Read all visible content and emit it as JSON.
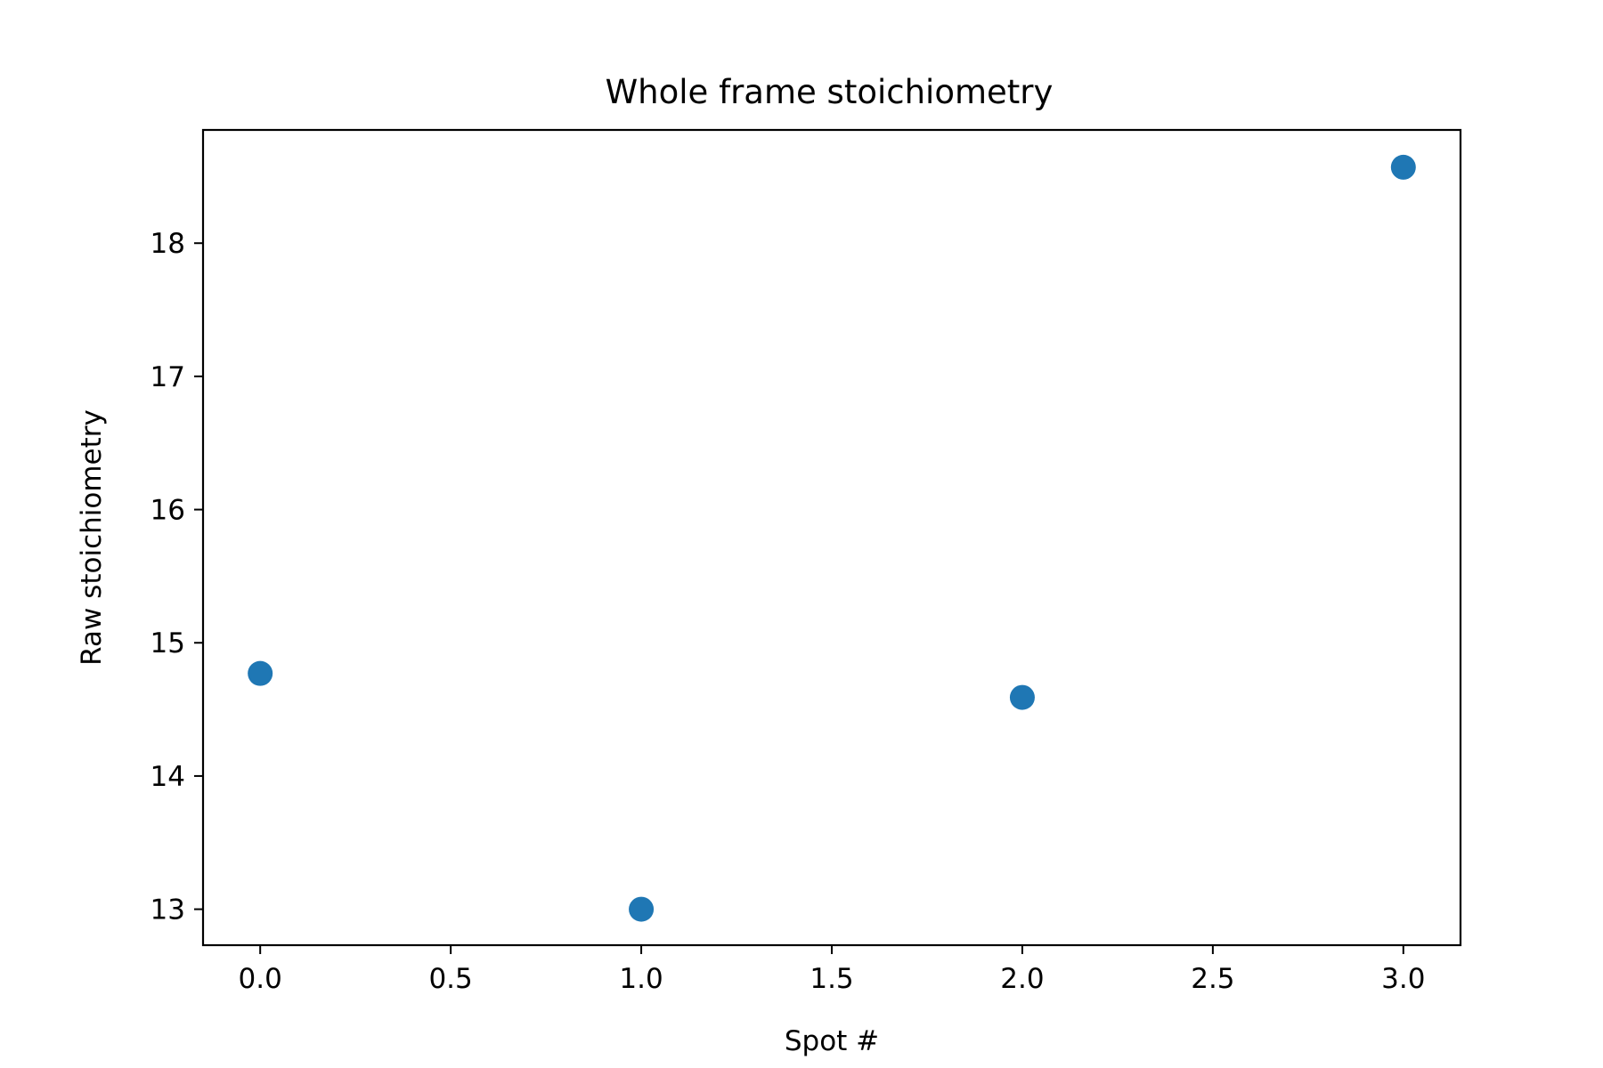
{
  "chart_data": {
    "type": "scatter",
    "title": "Whole frame stoichiometry",
    "xlabel": "Spot #",
    "ylabel": "Raw stoichiometry",
    "x": [
      0,
      1,
      2,
      3
    ],
    "y": [
      14.77,
      13.0,
      14.59,
      18.57
    ],
    "xlim": [
      -0.15,
      3.15
    ],
    "ylim": [
      12.73,
      18.85
    ],
    "xticks": [
      0.0,
      0.5,
      1.0,
      1.5,
      2.0,
      2.5,
      3.0
    ],
    "xtick_labels": [
      "0.0",
      "0.5",
      "1.0",
      "1.5",
      "2.0",
      "2.5",
      "3.0"
    ],
    "yticks": [
      13,
      14,
      15,
      16,
      17,
      18
    ],
    "ytick_labels": [
      "13",
      "14",
      "15",
      "16",
      "17",
      "18"
    ],
    "grid": false,
    "marker_color": "#1f77b4"
  }
}
